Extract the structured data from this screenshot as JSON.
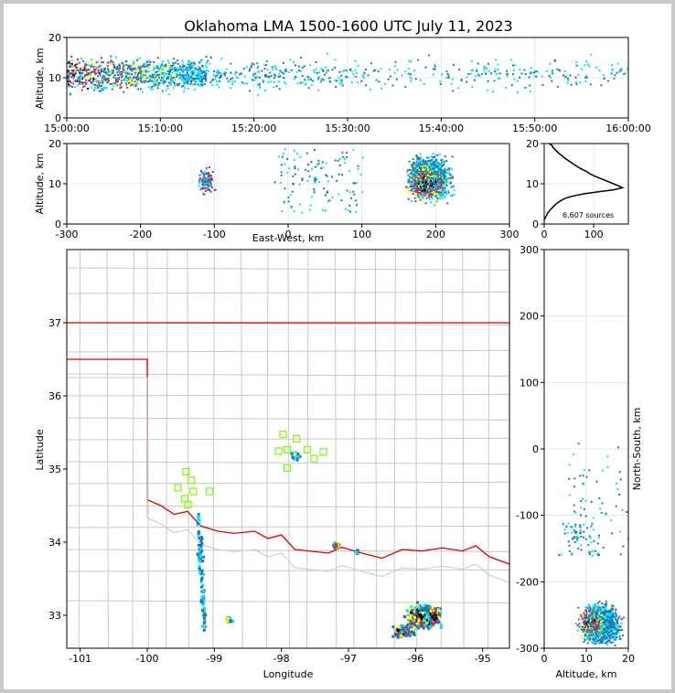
{
  "title": "Oklahoma LMA 1500-1600 UTC July 11, 2023",
  "colors": {
    "state_border": "#e00000",
    "county_line": "#c8c8c8",
    "station": "#7cfc00",
    "density_low": "#1f77b4",
    "density_mid": "#00e5ff",
    "density_high": "#ffff00",
    "density_peak": "#e6194b",
    "density_max": "#000000"
  },
  "chart_data": [
    {
      "type": "scatter",
      "panel": "time-height",
      "ylabel": "Altitude, km",
      "xlabel": "",
      "ylim": [
        0,
        20
      ],
      "y_ticks": [
        "0",
        "10",
        "20"
      ],
      "x_ticks": [
        "15:00:00",
        "15:10:00",
        "15:20:00",
        "15:30:00",
        "15:40:00",
        "15:50:00",
        "16:00:00"
      ],
      "x_range_minutes": [
        0,
        60
      ]
    },
    {
      "type": "scatter",
      "panel": "east-west-height",
      "ylabel": "Altitude, km",
      "xlabel": "East-West, km",
      "xlim": [
        -300,
        300
      ],
      "ylim": [
        0,
        20
      ],
      "x_ticks": [
        "-300",
        "-200",
        "-100",
        "0",
        "100",
        "200",
        "300"
      ],
      "y_ticks": [
        "0",
        "10",
        "20"
      ]
    },
    {
      "type": "line",
      "panel": "altitude-histogram",
      "xlim": [
        0,
        170
      ],
      "ylim": [
        0,
        20
      ],
      "x_ticks": [
        "0",
        "100"
      ],
      "y_ticks": [
        "0",
        "10",
        "20"
      ],
      "annotation": "6,607 sources",
      "profile": [
        [
          0,
          1
        ],
        [
          2,
          1.5
        ],
        [
          4,
          2
        ],
        [
          6,
          2.5
        ],
        [
          9,
          3
        ],
        [
          12,
          3.5
        ],
        [
          16,
          4
        ],
        [
          20,
          4.5
        ],
        [
          24,
          5
        ],
        [
          30,
          5.5
        ],
        [
          36,
          6
        ],
        [
          45,
          6.5
        ],
        [
          60,
          7
        ],
        [
          80,
          7.5
        ],
        [
          110,
          8
        ],
        [
          140,
          8.5
        ],
        [
          158,
          9
        ],
        [
          150,
          9.5
        ],
        [
          140,
          10
        ],
        [
          130,
          10.5
        ],
        [
          120,
          11
        ],
        [
          110,
          11.5
        ],
        [
          100,
          12
        ],
        [
          92,
          12.5
        ],
        [
          86,
          13
        ],
        [
          78,
          13.5
        ],
        [
          70,
          14
        ],
        [
          64,
          14.5
        ],
        [
          58,
          15
        ],
        [
          52,
          15.5
        ],
        [
          46,
          16
        ],
        [
          40,
          16.5
        ],
        [
          36,
          17
        ],
        [
          30,
          17.5
        ],
        [
          26,
          18
        ],
        [
          22,
          18.5
        ],
        [
          18,
          19
        ],
        [
          16,
          19.5
        ],
        [
          10,
          20
        ]
      ]
    },
    {
      "type": "scatter",
      "panel": "plan-view",
      "xlabel": "Longitude",
      "ylabel": "Latitude",
      "xlim": [
        -101.2,
        -94.6
      ],
      "ylim": [
        32.55,
        38
      ],
      "x_ticks": [
        "-101",
        "-100",
        "-99",
        "-98",
        "-97",
        "-96",
        "-95"
      ],
      "y_ticks": [
        "33",
        "34",
        "35",
        "36",
        "37"
      ],
      "stations": [
        [
          -99.43,
          34.97
        ],
        [
          -99.55,
          34.75
        ],
        [
          -99.35,
          34.85
        ],
        [
          -99.45,
          34.6
        ],
        [
          -99.4,
          34.52
        ],
        [
          -99.32,
          34.7
        ],
        [
          -99.08,
          34.7
        ],
        [
          -97.98,
          35.48
        ],
        [
          -97.78,
          35.42
        ],
        [
          -98.05,
          35.25
        ],
        [
          -97.92,
          35.27
        ],
        [
          -97.62,
          35.27
        ],
        [
          -97.52,
          35.15
        ],
        [
          -97.38,
          35.24
        ],
        [
          -97.92,
          35.02
        ]
      ]
    },
    {
      "type": "scatter",
      "panel": "north-south-height",
      "ylabel": "North-South, km",
      "xlabel": "Altitude, km",
      "xlim": [
        0,
        20
      ],
      "ylim": [
        -300,
        300
      ],
      "x_ticks": [
        "0",
        "10",
        "20"
      ],
      "y_ticks": [
        "-300",
        "-200",
        "-100",
        "0",
        "100",
        "200",
        "300"
      ]
    }
  ]
}
